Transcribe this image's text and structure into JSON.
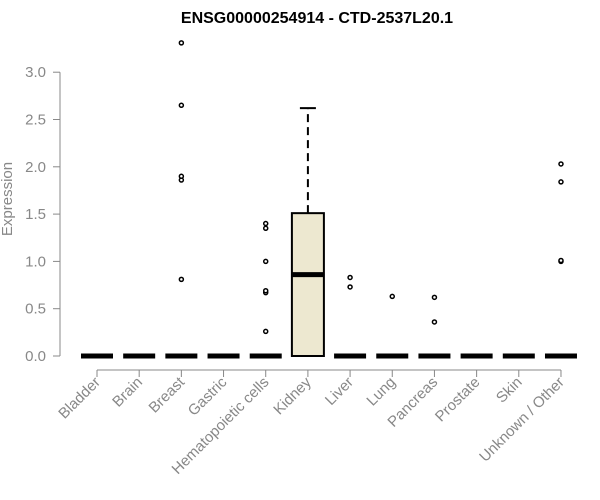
{
  "chart_data": {
    "type": "box",
    "title": "ENSG00000254914 - CTD-2537L20.1",
    "xlabel": "",
    "ylabel": "Expression",
    "ylim": [
      0,
      3.35
    ],
    "yticks": [
      "0.0",
      "0.5",
      "1.0",
      "1.5",
      "2.0",
      "2.5",
      "3.0"
    ],
    "grid": false,
    "colors": {
      "box_fill": "#ede8d0",
      "stroke": "#000000",
      "axis": "#888888"
    },
    "categories": [
      "Bladder",
      "Brain",
      "Breast",
      "Gastric",
      "Hematopoietic cells",
      "Kidney",
      "Liver",
      "Lung",
      "Pancreas",
      "Prostate",
      "Skin",
      "Unknown / Other"
    ],
    "boxes": [
      {
        "category": "Bladder",
        "q1": 0,
        "median": 0,
        "q3": 0,
        "whisker_low": 0,
        "whisker_high": 0,
        "outliers": []
      },
      {
        "category": "Brain",
        "q1": 0,
        "median": 0,
        "q3": 0,
        "whisker_low": 0,
        "whisker_high": 0,
        "outliers": []
      },
      {
        "category": "Breast",
        "q1": 0,
        "median": 0,
        "q3": 0,
        "whisker_low": 0,
        "whisker_high": 0,
        "outliers": [
          0.81,
          1.86,
          1.9,
          2.65,
          3.31
        ]
      },
      {
        "category": "Gastric",
        "q1": 0,
        "median": 0,
        "q3": 0,
        "whisker_low": 0,
        "whisker_high": 0,
        "outliers": []
      },
      {
        "category": "Hematopoietic cells",
        "q1": 0,
        "median": 0,
        "q3": 0,
        "whisker_low": 0,
        "whisker_high": 0,
        "outliers": [
          0.26,
          0.67,
          0.69,
          1.0,
          1.35,
          1.4
        ]
      },
      {
        "category": "Kidney",
        "q1": 0,
        "median": 0.86,
        "q3": 1.51,
        "whisker_low": 0,
        "whisker_high": 2.62,
        "outliers": []
      },
      {
        "category": "Liver",
        "q1": 0,
        "median": 0,
        "q3": 0,
        "whisker_low": 0,
        "whisker_high": 0,
        "outliers": [
          0.73,
          0.83
        ]
      },
      {
        "category": "Lung",
        "q1": 0,
        "median": 0,
        "q3": 0,
        "whisker_low": 0,
        "whisker_high": 0,
        "outliers": [
          0.63
        ]
      },
      {
        "category": "Pancreas",
        "q1": 0,
        "median": 0,
        "q3": 0,
        "whisker_low": 0,
        "whisker_high": 0,
        "outliers": [
          0.36,
          0.62
        ]
      },
      {
        "category": "Prostate",
        "q1": 0,
        "median": 0,
        "q3": 0,
        "whisker_low": 0,
        "whisker_high": 0,
        "outliers": []
      },
      {
        "category": "Skin",
        "q1": 0,
        "median": 0,
        "q3": 0,
        "whisker_low": 0,
        "whisker_high": 0,
        "outliers": []
      },
      {
        "category": "Unknown / Other",
        "q1": 0,
        "median": 0,
        "q3": 0,
        "whisker_low": 0,
        "whisker_high": 0,
        "outliers": [
          1.0,
          1.01,
          1.84,
          2.03
        ]
      }
    ]
  }
}
